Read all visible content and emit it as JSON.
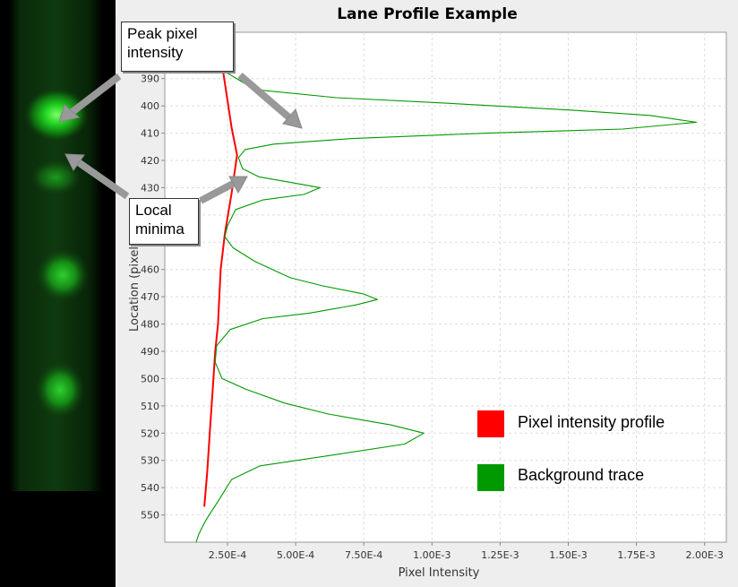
{
  "chart_data": {
    "type": "line",
    "title": "Lane Profile Example",
    "xlabel": "Pixel Intensity",
    "ylabel": "Location (pixel)",
    "xlim": [
      2e-05,
      0.00208
    ],
    "ylim": [
      560,
      373
    ],
    "xticks": [
      0.00025,
      0.0005,
      0.00075,
      0.001,
      0.00125,
      0.0015,
      0.00175,
      0.002
    ],
    "xtick_labels": [
      "2.50E-4",
      "5.00E-4",
      "7.50E-4",
      "1.00E-3",
      "1.25E-3",
      "1.50E-3",
      "1.75E-3",
      "2.00E-3"
    ],
    "yticks": [
      390,
      400,
      410,
      420,
      430,
      440,
      450,
      460,
      470,
      480,
      490,
      500,
      510,
      520,
      530,
      540,
      550
    ],
    "grid": true,
    "legend_position": "lower-right",
    "series": [
      {
        "name": "Pixel intensity profile",
        "color": "#ff0000",
        "points": [
          [
            0.000235,
            388
          ],
          [
            0.00025,
            398
          ],
          [
            0.000265,
            408
          ],
          [
            0.000285,
            418
          ],
          [
            0.000265,
            432
          ],
          [
            0.00024,
            447
          ],
          [
            0.000225,
            460
          ],
          [
            0.00022,
            470
          ],
          [
            0.000215,
            480
          ],
          [
            0.000205,
            490
          ],
          [
            0.000195,
            505
          ],
          [
            0.000185,
            520
          ],
          [
            0.000175,
            535
          ],
          [
            0.000165,
            547
          ]
        ]
      },
      {
        "name": "Background trace",
        "color": "#009900",
        "points": [
          [
            0.000265,
            375
          ],
          [
            0.000245,
            381
          ],
          [
            0.00025,
            388
          ],
          [
            0.00035,
            394
          ],
          [
            0.00065,
            397
          ],
          [
            0.00105,
            399
          ],
          [
            0.0015,
            401.5
          ],
          [
            0.0018,
            403.5
          ],
          [
            0.00197,
            406
          ],
          [
            0.0017,
            408.5
          ],
          [
            0.0012,
            410
          ],
          [
            0.0007,
            412
          ],
          [
            0.00042,
            414
          ],
          [
            0.000315,
            416
          ],
          [
            0.00029,
            419
          ],
          [
            0.000305,
            423
          ],
          [
            0.000365,
            426
          ],
          [
            0.00048,
            428
          ],
          [
            0.00059,
            430
          ],
          [
            0.00053,
            432.5
          ],
          [
            0.00038,
            434.5
          ],
          [
            0.00028,
            438
          ],
          [
            0.00025,
            444
          ],
          [
            0.00024,
            448
          ],
          [
            0.00027,
            452
          ],
          [
            0.00035,
            457
          ],
          [
            0.00048,
            463
          ],
          [
            0.0006,
            466
          ],
          [
            0.00075,
            469
          ],
          [
            0.0008,
            471
          ],
          [
            0.00072,
            473
          ],
          [
            0.00055,
            476
          ],
          [
            0.00038,
            478
          ],
          [
            0.00026,
            482
          ],
          [
            0.00021,
            488
          ],
          [
            0.000205,
            494
          ],
          [
            0.00023,
            500
          ],
          [
            0.00032,
            504
          ],
          [
            0.00046,
            509
          ],
          [
            0.00062,
            513
          ],
          [
            0.00085,
            517
          ],
          [
            0.00097,
            520
          ],
          [
            0.0009,
            524
          ],
          [
            0.00064,
            528
          ],
          [
            0.00037,
            532
          ],
          [
            0.000265,
            537
          ],
          [
            0.000215,
            545
          ],
          [
            0.00017,
            552
          ],
          [
            0.000145,
            557
          ],
          [
            0.000135,
            560
          ]
        ]
      }
    ]
  },
  "callouts": {
    "peak": "Peak pixel intensity",
    "minima": "Local minima"
  }
}
